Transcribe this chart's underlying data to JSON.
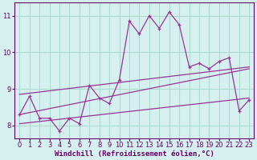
{
  "xlabel": "Windchill (Refroidissement éolien,°C)",
  "background_color": "#d6f0f0",
  "grid_color": "#aaddcc",
  "line_color": "#993399",
  "x_values": [
    0,
    1,
    2,
    3,
    4,
    5,
    6,
    7,
    8,
    9,
    10,
    11,
    12,
    13,
    14,
    15,
    16,
    17,
    18,
    19,
    20,
    21,
    22,
    23
  ],
  "y_main": [
    8.3,
    8.8,
    8.2,
    8.2,
    7.85,
    8.2,
    8.05,
    9.1,
    8.75,
    8.6,
    9.25,
    10.85,
    10.5,
    11.0,
    10.65,
    11.1,
    10.75,
    9.6,
    9.7,
    9.55,
    9.75,
    9.85,
    8.4,
    8.7
  ],
  "ylim_min": 7.65,
  "ylim_max": 11.35,
  "xlim_min": -0.5,
  "xlim_max": 23.5,
  "yticks": [
    8,
    9,
    10,
    11
  ],
  "xticks": [
    0,
    1,
    2,
    3,
    4,
    5,
    6,
    7,
    8,
    9,
    10,
    11,
    12,
    13,
    14,
    15,
    16,
    17,
    18,
    19,
    20,
    21,
    22,
    23
  ],
  "reg_lines": [
    {
      "x0": 0,
      "y0": 8.85,
      "x1": 23,
      "y1": 9.6
    },
    {
      "x0": 0,
      "y0": 8.3,
      "x1": 23,
      "y1": 9.55
    },
    {
      "x0": 0,
      "y0": 8.05,
      "x1": 23,
      "y1": 8.75
    }
  ],
  "tick_fontsize": 6,
  "xlabel_fontsize": 6.5
}
